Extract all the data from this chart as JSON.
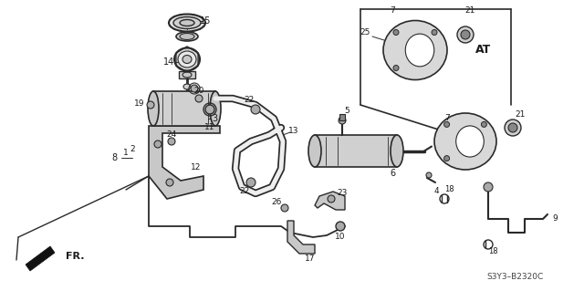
{
  "bg_color": "#ffffff",
  "diagram_code": "S3Y3–B2320C",
  "label_AT": "AT",
  "label_FR": "FR.",
  "fig_width": 6.4,
  "fig_height": 3.19,
  "dpi": 100,
  "lc": "#2a2a2a",
  "tc": "#1a1a1a",
  "fc": "#c8c8c8",
  "wfc": "#ffffff"
}
